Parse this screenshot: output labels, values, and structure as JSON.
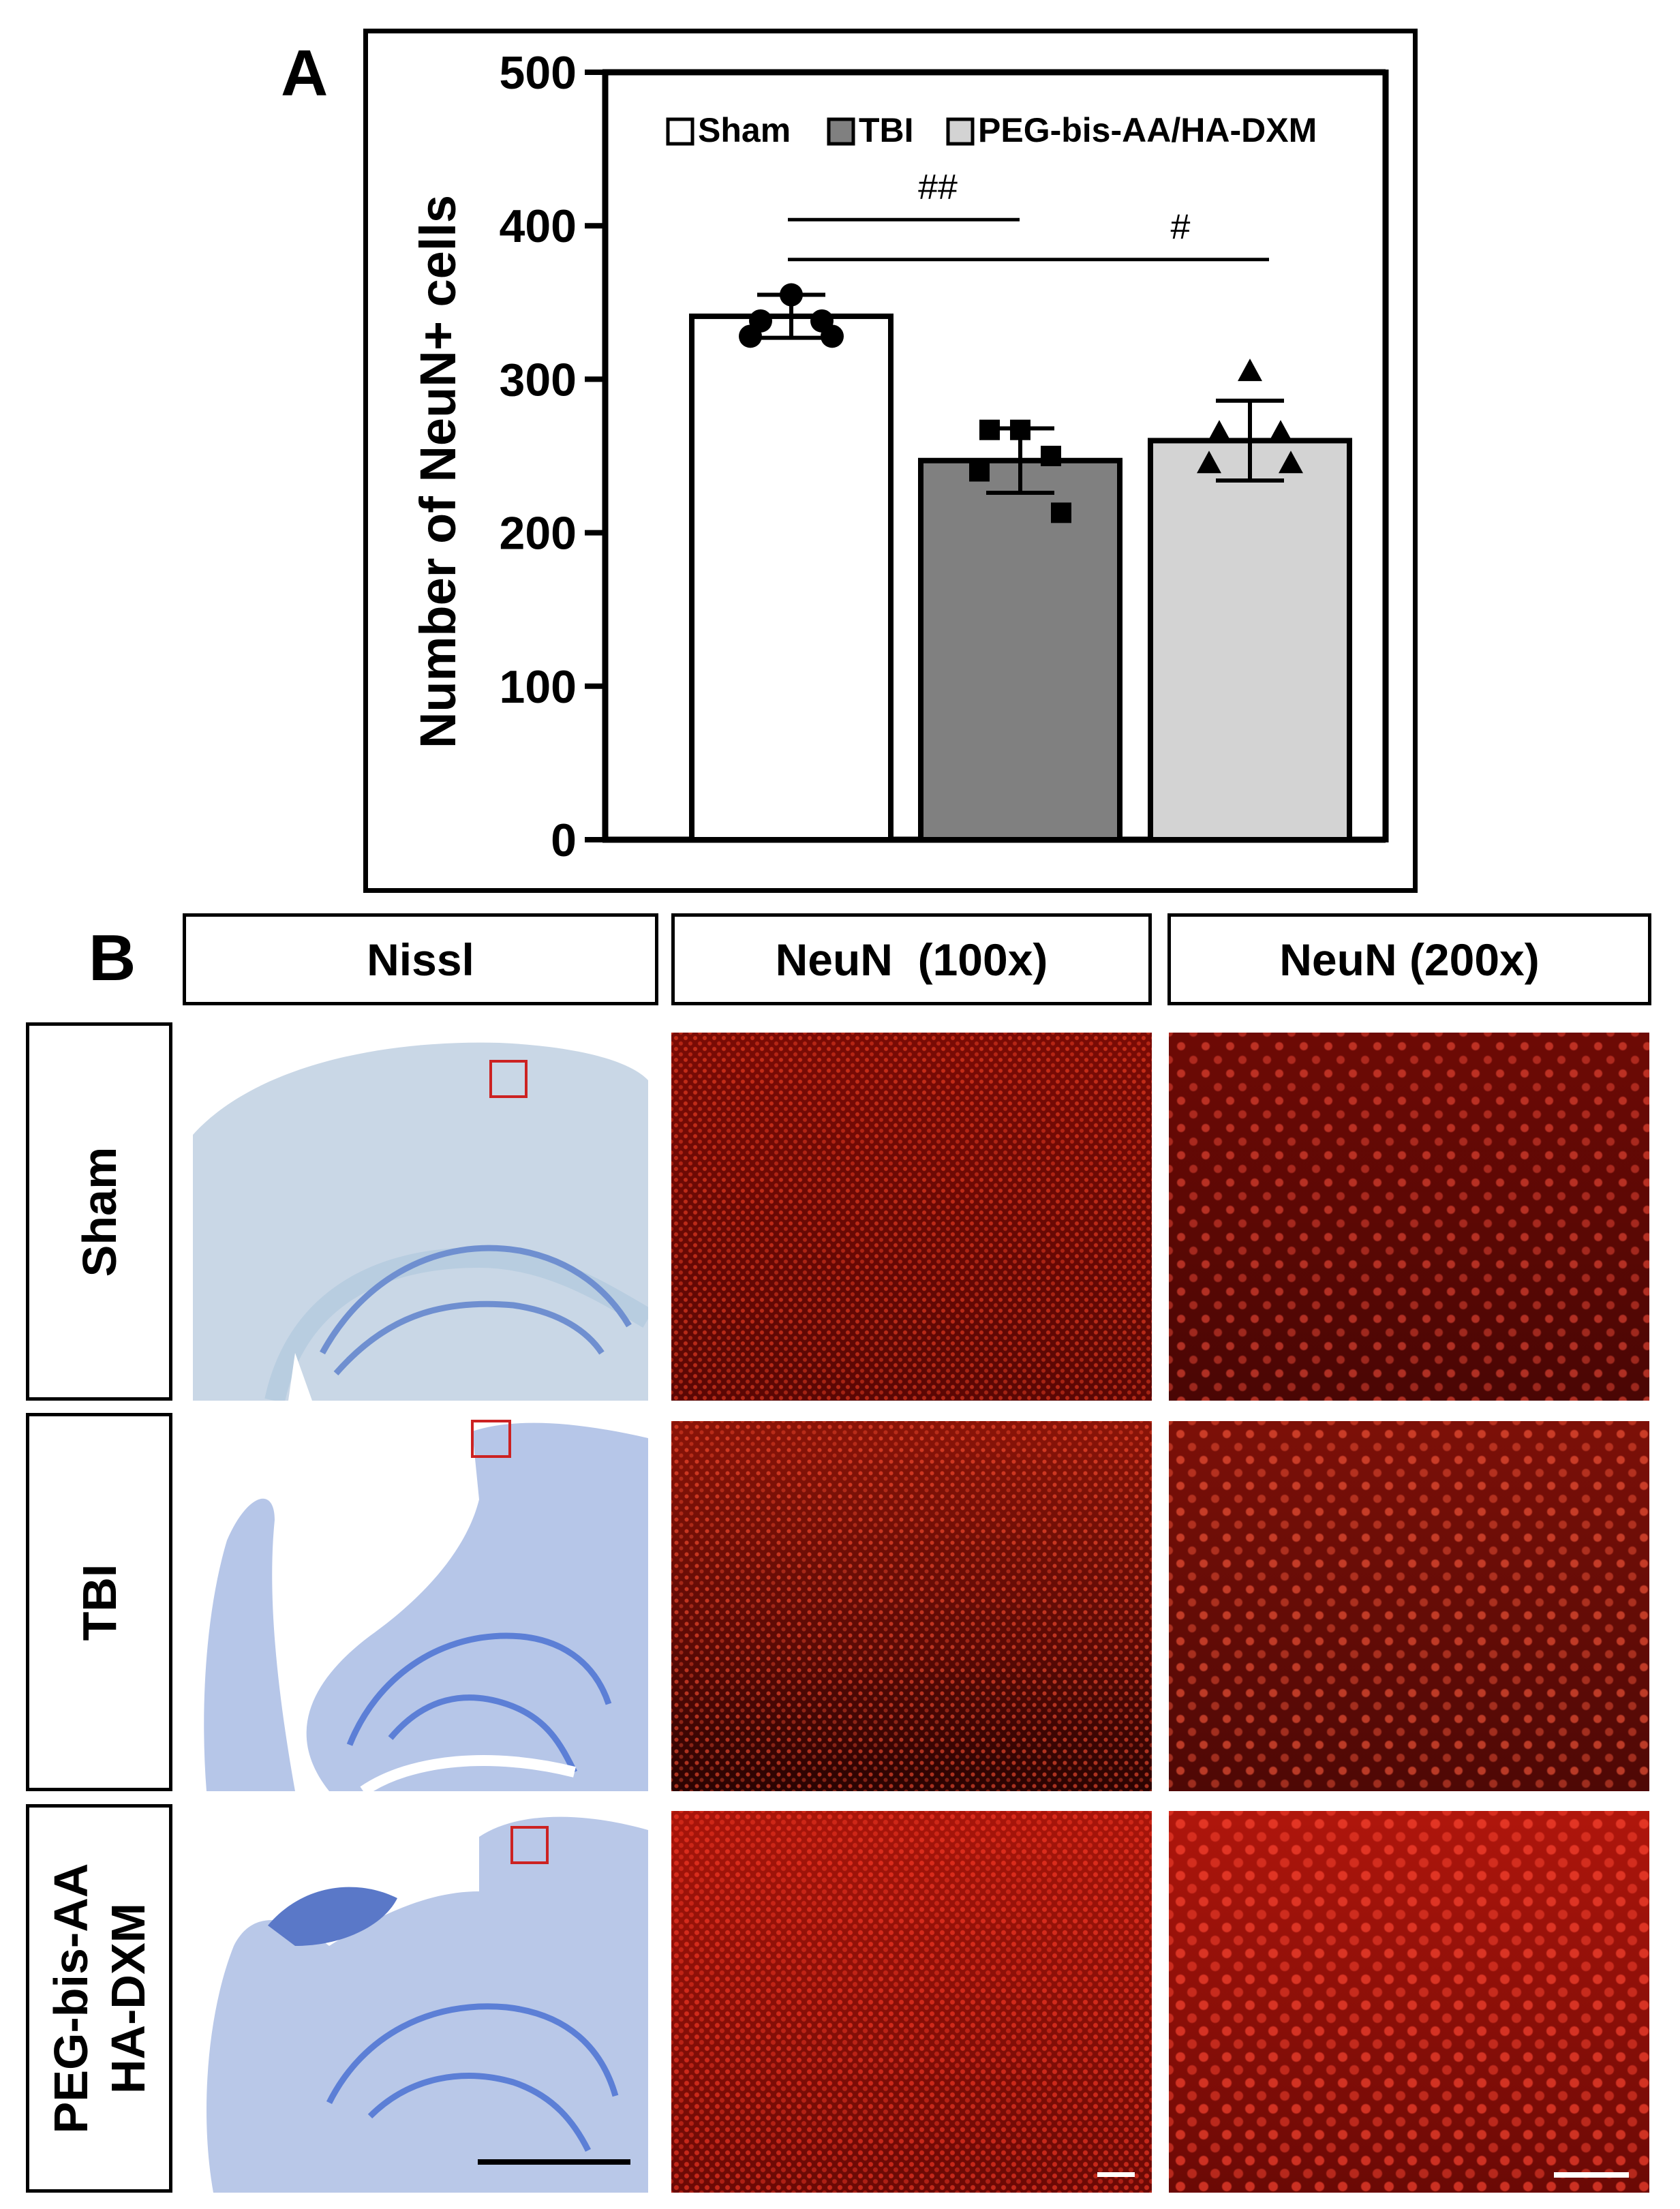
{
  "panel_a": {
    "letter": "A",
    "chart_data": {
      "type": "bar",
      "title": "",
      "xlabel": "",
      "ylabel": "Number of NeuN+ cells",
      "ylim": [
        0,
        500
      ],
      "yticks": [
        "0",
        "100",
        "200",
        "300",
        "400",
        "500"
      ],
      "categories": [
        "Sham",
        "TBI",
        "PEG-bis-AA/HA-DXM"
      ],
      "values": [
        341,
        247,
        260
      ],
      "error": [
        14,
        21,
        26
      ],
      "fill_colors": [
        "#ffffff",
        "#808080",
        "#d3d3d3"
      ],
      "point_markers": [
        "circle",
        "square",
        "triangle"
      ],
      "points": [
        [
          355,
          338,
          338,
          328,
          328
        ],
        [
          267,
          267,
          250,
          240,
          213
        ],
        [
          305,
          265,
          265,
          245,
          245
        ]
      ],
      "legend": {
        "placement": "top",
        "entries": [
          "Sham",
          "TBI",
          "PEG-bis-AA/HA-DXM"
        ]
      },
      "significance": [
        {
          "label": "##",
          "from": "Sham",
          "to": "TBI",
          "y": 404
        },
        {
          "label": "#",
          "from": "Sham",
          "to": "PEG-bis-AA/HA-DXM",
          "y": 378
        }
      ]
    }
  },
  "panel_b": {
    "letter": "B",
    "column_headers": [
      "Nissl",
      "NeuN  (100x)",
      "NeuN (200x)"
    ],
    "row_labels": [
      "Sham",
      "TBI",
      "PEG-bis-AA\nHA-DXM"
    ]
  }
}
